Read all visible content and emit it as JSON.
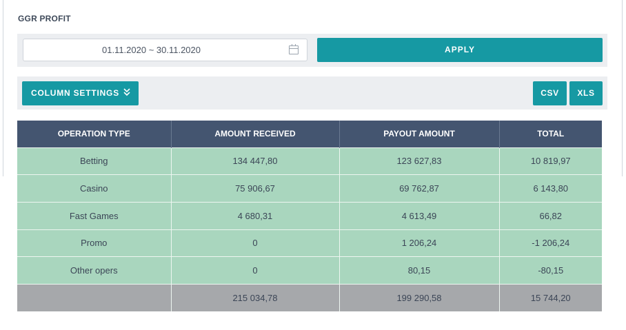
{
  "title": "GGR PROFIT",
  "filter": {
    "date_range": "01.11.2020 ~ 30.11.2020",
    "calendar_icon": "calendar-icon",
    "apply_label": "APPLY"
  },
  "toolbar": {
    "column_settings_label": "COLUMN SETTINGS",
    "column_settings_icon": "chevrons-down-icon",
    "csv_label": "CSV",
    "xls_label": "XLS"
  },
  "table": {
    "headers": [
      "OPERATION TYPE",
      "AMOUNT RECEIVED",
      "PAYOUT AMOUNT",
      "TOTAL"
    ],
    "rows": [
      [
        "Betting",
        "134 447,80",
        "123 627,83",
        "10 819,97"
      ],
      [
        "Casino",
        "75 906,67",
        "69 762,87",
        "6 143,80"
      ],
      [
        "Fast Games",
        "4 680,31",
        "4 613,49",
        "66,82"
      ],
      [
        "Promo",
        "0",
        "1 206,24",
        "-1 206,24"
      ],
      [
        "Other opers",
        "0",
        "80,15",
        "-80,15"
      ]
    ],
    "totals": [
      "",
      "215 034,78",
      "199 290,58",
      "15 744,20"
    ]
  },
  "colors": {
    "accent": "#1699a3",
    "header_bg": "#445570",
    "row_bg": "#a9d6be",
    "total_bg": "#a6a8ab",
    "bar_bg": "#eceef1"
  }
}
